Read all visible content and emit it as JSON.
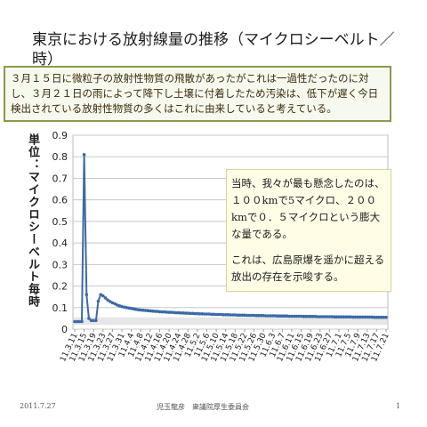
{
  "slide": {
    "title": "東京における放射線量の推移（マイクロシーベルト／時）",
    "note": "３月１５日に微粒子の放射性物質の飛散があったがこれは一過性だったのに対し、３月２１日の雨によって降下し土壌に付着したため汚染は、低下が遅く今日検出されている放射性物質の多くはこれに由来していると考えている。",
    "callout_1": "当時、我々が最も懸念したのは、１００kmで5マイクロ、２００kmで０．５マイクロという膨大な量である。",
    "callout_2": "これは、広島原爆を遥かに超える放出の存在を示唆する。",
    "footer_date": "2011.7.27",
    "footer_org": "児玉龍彦　衆議院厚生委員会",
    "footer_page": "1"
  },
  "chart_data": {
    "type": "line",
    "ylabel": "単位：マイクロシーベルト毎時",
    "ylim": [
      0,
      0.9
    ],
    "yticks": [
      "0",
      "0.1",
      "0.2",
      "0.3",
      "0.4",
      "0.5",
      "0.6",
      "0.7",
      "0.8",
      "0.9"
    ],
    "xtick_labels": [
      "11.3.11",
      "11.3.15",
      "11.3.19",
      "11.3.23",
      "11.3.27",
      "11.3.31",
      "11.4.4",
      "11.4.8",
      "11.4.12",
      "11.4.16",
      "11.4.20",
      "11.4.24",
      "11.4.28",
      "11.5.2",
      "11.5.6",
      "11.5.10",
      "11.5.14",
      "11.5.18",
      "11.5.22",
      "11.5.26",
      "11.5.30",
      "11.6.3",
      "11.6.7",
      "11.6.11",
      "11.6.15",
      "11.6.19",
      "11.6.23",
      "11.6.27",
      "11.7.1",
      "11.7.5",
      "11.7.9",
      "11.7.13",
      "11.7.17",
      "11.7.21"
    ],
    "series": [
      {
        "color": "#3d6aa6",
        "values": [
          0.035,
          0.035,
          0.035,
          0.035,
          0.81,
          0.16,
          0.05,
          0.04,
          0.04,
          0.04,
          0.13,
          0.16,
          0.155,
          0.145,
          0.135,
          0.128,
          0.122,
          0.118,
          0.112,
          0.108,
          0.105,
          0.102,
          0.1,
          0.098,
          0.096,
          0.094,
          0.092,
          0.09,
          0.089,
          0.088,
          0.087,
          0.086,
          0.085,
          0.084,
          0.083,
          0.082,
          0.081,
          0.08,
          0.08,
          0.079,
          0.078,
          0.078,
          0.077,
          0.076,
          0.076,
          0.075,
          0.075,
          0.074,
          0.074,
          0.073,
          0.073,
          0.072,
          0.072,
          0.071,
          0.071,
          0.07,
          0.07,
          0.07,
          0.069,
          0.069,
          0.068,
          0.068,
          0.068,
          0.067,
          0.067,
          0.067,
          0.066,
          0.066,
          0.066,
          0.065,
          0.065,
          0.065,
          0.065,
          0.064,
          0.064,
          0.064,
          0.064,
          0.063,
          0.063,
          0.063,
          0.063,
          0.062,
          0.062,
          0.062,
          0.062,
          0.062,
          0.061,
          0.061,
          0.061,
          0.061,
          0.061,
          0.06,
          0.06,
          0.06,
          0.06,
          0.06,
          0.06,
          0.059,
          0.059,
          0.059,
          0.059,
          0.059,
          0.059,
          0.058,
          0.058,
          0.058,
          0.058,
          0.058,
          0.058,
          0.058,
          0.057,
          0.057,
          0.057,
          0.057,
          0.057,
          0.057,
          0.057,
          0.057,
          0.056,
          0.056,
          0.056,
          0.056,
          0.056,
          0.056,
          0.056,
          0.056,
          0.056,
          0.055,
          0.055,
          0.055,
          0.055,
          0.055,
          0.055
        ]
      }
    ]
  }
}
